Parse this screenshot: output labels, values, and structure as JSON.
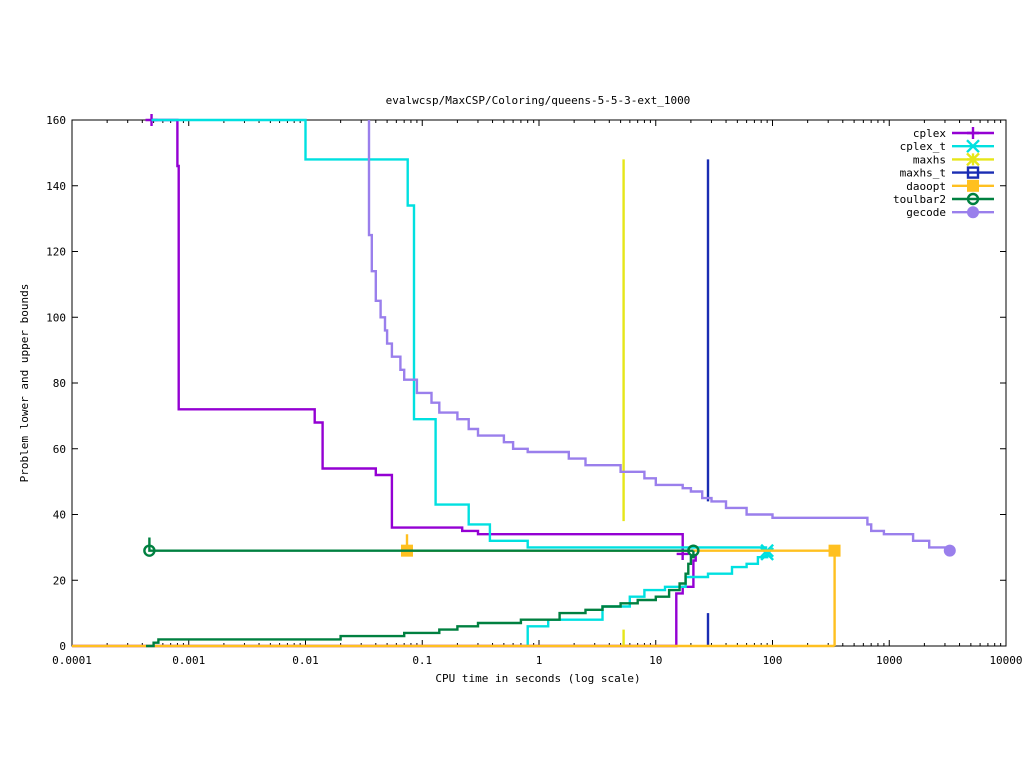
{
  "chart_data": {
    "type": "line",
    "title": "evalwcsp/MaxCSP/Coloring/queens-5-5-3-ext_1000",
    "xlabel": "CPU time in seconds (log scale)",
    "ylabel": "Problem lower and upper bounds",
    "x_scale": "log",
    "xlim": [
      0.0001,
      10000
    ],
    "ylim": [
      0,
      160
    ],
    "x_ticks": [
      {
        "v": 0.0001,
        "label": "0.0001"
      },
      {
        "v": 0.001,
        "label": "0.001"
      },
      {
        "v": 0.01,
        "label": "0.01"
      },
      {
        "v": 0.1,
        "label": "0.1"
      },
      {
        "v": 1,
        "label": "1"
      },
      {
        "v": 10,
        "label": "10"
      },
      {
        "v": 100,
        "label": "100"
      },
      {
        "v": 1000,
        "label": "1000"
      },
      {
        "v": 10000,
        "label": "10000"
      }
    ],
    "y_ticks": [
      {
        "v": 0,
        "label": "0"
      },
      {
        "v": 20,
        "label": "20"
      },
      {
        "v": 40,
        "label": "40"
      },
      {
        "v": 60,
        "label": "60"
      },
      {
        "v": 80,
        "label": "80"
      },
      {
        "v": 100,
        "label": "100"
      },
      {
        "v": 120,
        "label": "120"
      },
      {
        "v": 140,
        "label": "140"
      },
      {
        "v": 160,
        "label": "160"
      }
    ],
    "legend_position": "top-right",
    "grid": false,
    "series": [
      {
        "name": "cplex",
        "color": "#9400d3",
        "marker": "plus",
        "upper": [
          [
            0.00048,
            160
          ],
          [
            0.0008,
            160
          ],
          [
            0.0008,
            146
          ],
          [
            0.00082,
            146
          ],
          [
            0.00082,
            72
          ],
          [
            0.012,
            72
          ],
          [
            0.012,
            68
          ],
          [
            0.014,
            68
          ],
          [
            0.014,
            54
          ],
          [
            0.04,
            54
          ],
          [
            0.04,
            52
          ],
          [
            0.055,
            52
          ],
          [
            0.055,
            36
          ],
          [
            0.22,
            36
          ],
          [
            0.22,
            35
          ],
          [
            0.3,
            35
          ],
          [
            0.3,
            34
          ],
          [
            17,
            34
          ],
          [
            17,
            28
          ]
        ],
        "lower": [
          [
            0.0001,
            0
          ],
          [
            15,
            0
          ],
          [
            15,
            16
          ],
          [
            17,
            16
          ],
          [
            17,
            18
          ],
          [
            21,
            18
          ],
          [
            21,
            26
          ],
          [
            22,
            26
          ],
          [
            22,
            28
          ]
        ],
        "markers": [
          [
            0.00048,
            160
          ],
          [
            17,
            28
          ]
        ]
      },
      {
        "name": "cplex_t",
        "color": "#00e0e0",
        "marker": "x",
        "upper": [
          [
            0.00048,
            160
          ],
          [
            0.01,
            160
          ],
          [
            0.01,
            148
          ],
          [
            0.075,
            148
          ],
          [
            0.075,
            134
          ],
          [
            0.085,
            134
          ],
          [
            0.085,
            69
          ],
          [
            0.13,
            69
          ],
          [
            0.13,
            43
          ],
          [
            0.25,
            43
          ],
          [
            0.25,
            37
          ],
          [
            0.38,
            37
          ],
          [
            0.38,
            32
          ],
          [
            0.8,
            32
          ],
          [
            0.8,
            30
          ],
          [
            90,
            30
          ]
        ],
        "lower": [
          [
            0.8,
            0
          ],
          [
            0.8,
            6
          ],
          [
            1.2,
            6
          ],
          [
            1.2,
            8
          ],
          [
            3.5,
            8
          ],
          [
            3.5,
            12
          ],
          [
            6,
            12
          ],
          [
            6,
            15
          ],
          [
            8,
            15
          ],
          [
            8,
            17
          ],
          [
            12,
            17
          ],
          [
            12,
            18
          ],
          [
            18,
            18
          ],
          [
            18,
            21
          ],
          [
            28,
            21
          ],
          [
            28,
            22
          ],
          [
            45,
            22
          ],
          [
            45,
            24
          ],
          [
            60,
            24
          ],
          [
            60,
            25
          ],
          [
            75,
            25
          ],
          [
            75,
            27
          ],
          [
            90,
            27
          ],
          [
            90,
            29
          ]
        ],
        "markers": [
          [
            90,
            29
          ],
          [
            90,
            28
          ]
        ]
      },
      {
        "name": "maxhs",
        "color": "#e6e619",
        "marker": "star",
        "upper": [
          [
            5.3,
            148
          ],
          [
            5.3,
            38
          ]
        ],
        "lower": [
          [
            5.3,
            0
          ],
          [
            5.3,
            5
          ]
        ],
        "markers": []
      },
      {
        "name": "maxhs_t",
        "color": "#1a2db3",
        "marker": "square",
        "upper": [
          [
            28,
            148
          ],
          [
            28,
            44
          ]
        ],
        "lower": [
          [
            28,
            0
          ],
          [
            28,
            10
          ]
        ],
        "markers": []
      },
      {
        "name": "daoopt",
        "color": "#ffc020",
        "marker": "square-filled",
        "upper": [
          [
            0.074,
            34
          ],
          [
            0.074,
            29
          ],
          [
            340,
            29
          ],
          [
            340,
            0
          ]
        ],
        "lower": [
          [
            0.0001,
            0
          ],
          [
            340,
            0
          ]
        ],
        "markers": [
          [
            0.074,
            29
          ],
          [
            340,
            29
          ]
        ]
      },
      {
        "name": "toulbar2",
        "color": "#008040",
        "marker": "circle",
        "upper": [
          [
            0.00046,
            33
          ],
          [
            0.00046,
            29
          ],
          [
            21,
            29
          ]
        ],
        "lower": [
          [
            0.00043,
            0
          ],
          [
            0.0005,
            0
          ],
          [
            0.0005,
            1
          ],
          [
            0.00055,
            1
          ],
          [
            0.00055,
            2
          ],
          [
            0.02,
            2
          ],
          [
            0.02,
            3
          ],
          [
            0.07,
            3
          ],
          [
            0.07,
            4
          ],
          [
            0.14,
            4
          ],
          [
            0.14,
            5
          ],
          [
            0.2,
            5
          ],
          [
            0.2,
            6
          ],
          [
            0.3,
            6
          ],
          [
            0.3,
            7
          ],
          [
            0.7,
            7
          ],
          [
            0.7,
            8
          ],
          [
            1.5,
            8
          ],
          [
            1.5,
            10
          ],
          [
            2.5,
            10
          ],
          [
            2.5,
            11
          ],
          [
            3.5,
            11
          ],
          [
            3.5,
            12
          ],
          [
            5,
            12
          ],
          [
            5,
            13
          ],
          [
            7,
            13
          ],
          [
            7,
            14
          ],
          [
            10,
            14
          ],
          [
            10,
            15
          ],
          [
            13,
            15
          ],
          [
            13,
            17
          ],
          [
            16,
            17
          ],
          [
            16,
            19
          ],
          [
            18,
            19
          ],
          [
            18,
            22
          ],
          [
            19,
            22
          ],
          [
            19,
            25
          ],
          [
            20,
            25
          ],
          [
            20,
            27
          ],
          [
            21,
            27
          ],
          [
            21,
            29
          ]
        ],
        "markers": [
          [
            0.00046,
            29
          ],
          [
            21,
            29
          ]
        ]
      },
      {
        "name": "gecode",
        "color": "#9a7fec",
        "marker": "circle-filled",
        "upper": [
          [
            0.035,
            160
          ],
          [
            0.035,
            125
          ],
          [
            0.037,
            125
          ],
          [
            0.037,
            114
          ],
          [
            0.04,
            114
          ],
          [
            0.04,
            105
          ],
          [
            0.044,
            105
          ],
          [
            0.044,
            100
          ],
          [
            0.048,
            100
          ],
          [
            0.048,
            96
          ],
          [
            0.05,
            96
          ],
          [
            0.05,
            92
          ],
          [
            0.055,
            92
          ],
          [
            0.055,
            88
          ],
          [
            0.065,
            88
          ],
          [
            0.065,
            84
          ],
          [
            0.07,
            84
          ],
          [
            0.07,
            81
          ],
          [
            0.09,
            81
          ],
          [
            0.09,
            77
          ],
          [
            0.12,
            77
          ],
          [
            0.12,
            74
          ],
          [
            0.14,
            74
          ],
          [
            0.14,
            71
          ],
          [
            0.2,
            71
          ],
          [
            0.2,
            69
          ],
          [
            0.25,
            69
          ],
          [
            0.25,
            66
          ],
          [
            0.3,
            66
          ],
          [
            0.3,
            64
          ],
          [
            0.5,
            64
          ],
          [
            0.5,
            62
          ],
          [
            0.6,
            62
          ],
          [
            0.6,
            60
          ],
          [
            0.8,
            60
          ],
          [
            0.8,
            59
          ],
          [
            1.8,
            59
          ],
          [
            1.8,
            57
          ],
          [
            2.5,
            57
          ],
          [
            2.5,
            55
          ],
          [
            5,
            55
          ],
          [
            5,
            53
          ],
          [
            8,
            53
          ],
          [
            8,
            51
          ],
          [
            10,
            51
          ],
          [
            10,
            49
          ],
          [
            17,
            49
          ],
          [
            17,
            48
          ],
          [
            20,
            48
          ],
          [
            20,
            47
          ],
          [
            25,
            47
          ],
          [
            25,
            45
          ],
          [
            30,
            45
          ],
          [
            30,
            44
          ],
          [
            40,
            44
          ],
          [
            40,
            42
          ],
          [
            60,
            42
          ],
          [
            60,
            40
          ],
          [
            100,
            40
          ],
          [
            100,
            39
          ],
          [
            650,
            39
          ],
          [
            650,
            37
          ],
          [
            700,
            37
          ],
          [
            700,
            35
          ],
          [
            900,
            35
          ],
          [
            900,
            34
          ],
          [
            1600,
            34
          ],
          [
            1600,
            32
          ],
          [
            2200,
            32
          ],
          [
            2200,
            30
          ],
          [
            3300,
            30
          ],
          [
            3300,
            29
          ]
        ],
        "lower": [],
        "markers": [
          [
            3300,
            29
          ]
        ]
      }
    ]
  }
}
